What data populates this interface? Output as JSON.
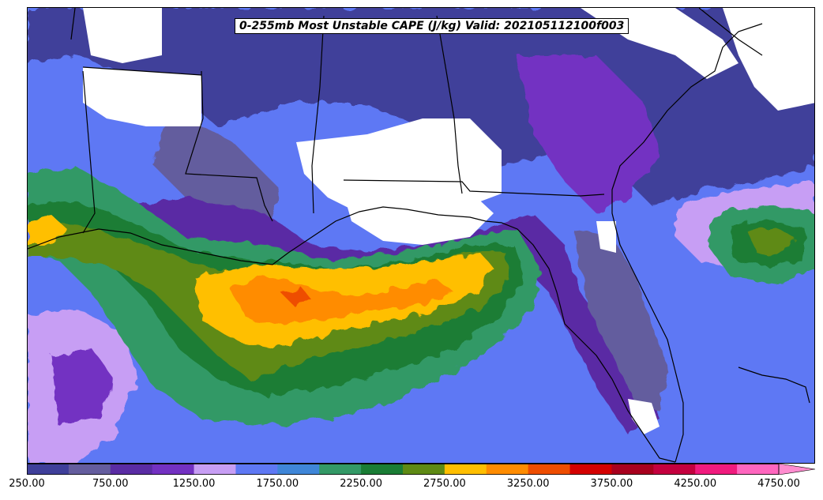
{
  "title": "0-255mb Most Unstable CAPE (J/kg) Valid: 202105112100f003",
  "colorbar": {
    "colors": [
      "#3f3f9a",
      "#645d9e",
      "#5a2ca4",
      "#7331c2",
      "#c79ef4",
      "#5e78f4",
      "#3f86d8",
      "#339966",
      "#1a7d35",
      "#5e8a14",
      "#ffbf00",
      "#ff8c00",
      "#ee4d00",
      "#d40000",
      "#a8001e",
      "#c4003f",
      "#f01b7e",
      "#ff66bf"
    ],
    "extend_color": "#ff8ccf",
    "ticks": [
      "250.00",
      "750.00",
      "1250.00",
      "1750.00",
      "2250.00",
      "2750.00",
      "3250.00",
      "3750.00",
      "4250.00",
      "4750.00"
    ]
  },
  "legend_colors": {
    "land_missing": "#ffffff",
    "boundaries": "#000000"
  }
}
